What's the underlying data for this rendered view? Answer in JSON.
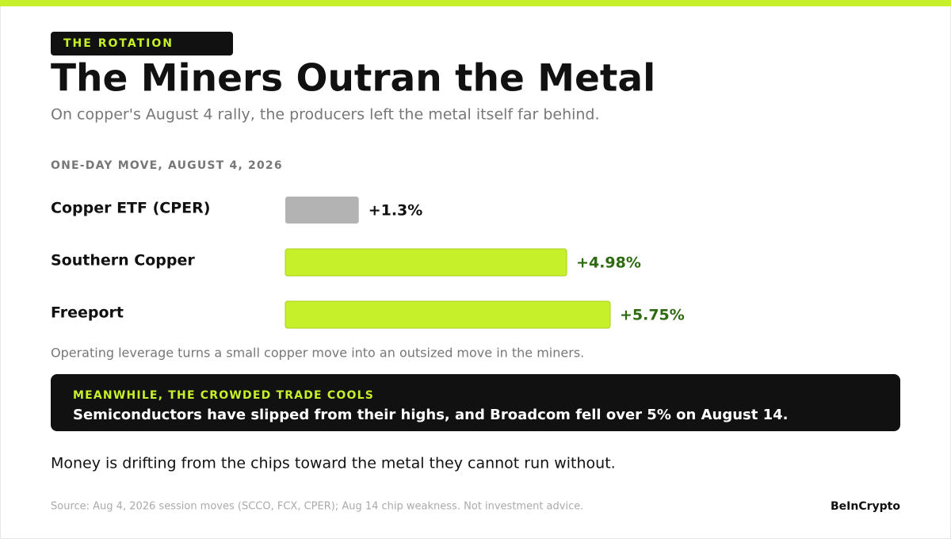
{
  "kicker": "THE ROTATION",
  "title": "The Miners Outran the Metal",
  "subtitle": "On copper's August 4 rally, the producers left the metal itself far behind.",
  "chart_data": {
    "type": "bar",
    "title": "ONE-DAY MOVE, AUGUST 4, 2026",
    "categories": [
      "Copper ETF (CPER)",
      "Southern Copper",
      "Freeport"
    ],
    "values": [
      1.3,
      4.98,
      5.75
    ],
    "value_labels": [
      "+1.3%",
      "+4.98%",
      "+5.75%"
    ],
    "colors": [
      "#b3b3b3",
      "#c6f02a",
      "#c6f02a"
    ],
    "value_label_colors": [
      "#111111",
      "#2d6a12",
      "#2d6a12"
    ]
  },
  "note": "Operating leverage turns a small copper move into an outsized move in the miners.",
  "callout": {
    "heading": "MEANWHILE, THE CROWDED TRADE COOLS",
    "body": "Semiconductors have slipped from their highs, and Broadcom fell over 5% on August 14."
  },
  "closing": "Money is drifting from the chips toward the metal they cannot run without.",
  "source": "Source: Aug 4, 2026 session moves (SCCO, FCX, CPER); Aug 14 chip weakness. Not investment advice.",
  "brand": "BeInCrypto"
}
